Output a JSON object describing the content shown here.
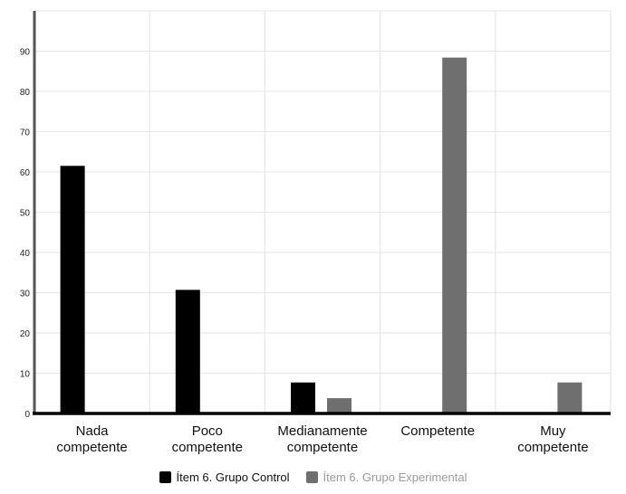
{
  "chart_data": {
    "type": "bar",
    "categories": [
      [
        "Nada",
        "competente"
      ],
      [
        "Poco",
        "competente"
      ],
      [
        "Medianamente",
        "competente"
      ],
      [
        "Competente"
      ],
      [
        "Muy",
        "competente"
      ]
    ],
    "series": [
      {
        "name": "Ítem 6. Grupo Control",
        "values": [
          61.5,
          30.7,
          7.7,
          0,
          0
        ],
        "color": "#000000"
      },
      {
        "name": "Ítem 6. Grupo Experimental",
        "values": [
          0,
          0,
          3.8,
          88.4,
          7.7
        ],
        "color": "#6f6f6f"
      }
    ],
    "ytick_labels": [
      "0",
      "10",
      "20",
      "30",
      "40",
      "50",
      "60",
      "70",
      "80",
      "90"
    ],
    "ylim": [
      0,
      100
    ],
    "grid": true,
    "legend_position": "bottom"
  },
  "legend": {
    "control_label": "Ítem 6. Grupo Control",
    "experimental_label": "Ítem 6. Grupo Experimental",
    "control_color": "#000000",
    "experimental_color": "#6f6f6f",
    "control_text_color": "#111111",
    "experimental_text_color": "#9a9a9a"
  }
}
